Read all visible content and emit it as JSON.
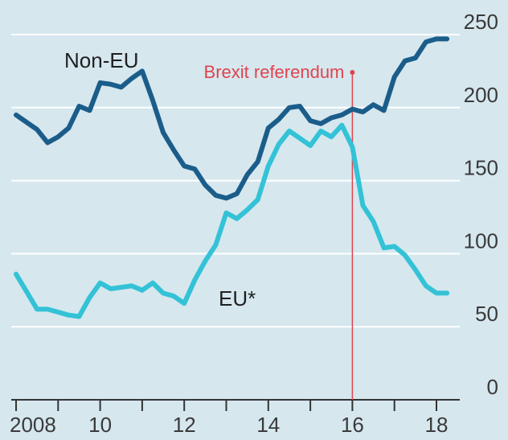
{
  "chart_data": {
    "type": "line",
    "ylim": [
      0,
      250
    ],
    "xlim": [
      2007.9,
      2018.6
    ],
    "grid": true,
    "y_ticks": [
      {
        "value": 0,
        "label": "0"
      },
      {
        "value": 50,
        "label": "50"
      },
      {
        "value": 100,
        "label": "100"
      },
      {
        "value": 150,
        "label": "150"
      },
      {
        "value": 200,
        "label": "200"
      },
      {
        "value": 250,
        "label": "250"
      }
    ],
    "x_ticks": [
      {
        "value": 2008,
        "label": "2008"
      },
      {
        "value": 2010,
        "label": "10"
      },
      {
        "value": 2012,
        "label": "12"
      },
      {
        "value": 2014,
        "label": "14"
      },
      {
        "value": 2016,
        "label": "16"
      },
      {
        "value": 2018,
        "label": "18"
      }
    ],
    "x_minor_ticks": [
      2009,
      2011,
      2013,
      2015,
      2017
    ],
    "series": [
      {
        "name": "Non-EU",
        "color": "#1b5d8a",
        "x": [
          2008.0,
          2008.25,
          2008.5,
          2008.75,
          2009.0,
          2009.25,
          2009.5,
          2009.75,
          2010.0,
          2010.25,
          2010.5,
          2010.75,
          2011.0,
          2011.25,
          2011.5,
          2011.75,
          2012.0,
          2012.25,
          2012.5,
          2012.75,
          2013.0,
          2013.25,
          2013.5,
          2013.75,
          2014.0,
          2014.25,
          2014.5,
          2014.75,
          2015.0,
          2015.25,
          2015.5,
          2015.75,
          2016.0,
          2016.25,
          2016.5,
          2016.75,
          2017.0,
          2017.25,
          2017.5,
          2017.75,
          2018.0,
          2018.25
        ],
        "values": [
          195,
          190,
          185,
          176,
          180,
          186,
          201,
          198,
          217,
          216,
          214,
          220,
          225,
          205,
          183,
          171,
          160,
          158,
          147,
          140,
          138,
          141,
          154,
          163,
          186,
          192,
          200,
          201,
          191,
          189,
          193,
          195,
          199,
          197,
          202,
          198,
          221,
          232,
          234,
          245,
          247,
          247
        ]
      },
      {
        "name": "EU*",
        "color": "#33c2d6",
        "x": [
          2008.0,
          2008.25,
          2008.5,
          2008.75,
          2009.0,
          2009.25,
          2009.5,
          2009.75,
          2010.0,
          2010.25,
          2010.5,
          2010.75,
          2011.0,
          2011.25,
          2011.5,
          2011.75,
          2012.0,
          2012.25,
          2012.5,
          2012.75,
          2013.0,
          2013.25,
          2013.5,
          2013.75,
          2014.0,
          2014.25,
          2014.5,
          2014.75,
          2015.0,
          2015.25,
          2015.5,
          2015.75,
          2016.0,
          2016.25,
          2016.5,
          2016.75,
          2017.0,
          2017.25,
          2017.5,
          2017.75,
          2018.0,
          2018.25
        ],
        "values": [
          86,
          74,
          62,
          62,
          60,
          58,
          57,
          70,
          80,
          76,
          77,
          78,
          75,
          80,
          73,
          71,
          66,
          82,
          95,
          106,
          128,
          124,
          130,
          137,
          160,
          175,
          184,
          179,
          174,
          184,
          180,
          188,
          173,
          133,
          122,
          104,
          105,
          99,
          89,
          78,
          73,
          73
        ]
      }
    ],
    "annotations": [
      {
        "label": "Brexit referendum",
        "x": 2016.0,
        "color": "#e0434e"
      }
    ]
  }
}
